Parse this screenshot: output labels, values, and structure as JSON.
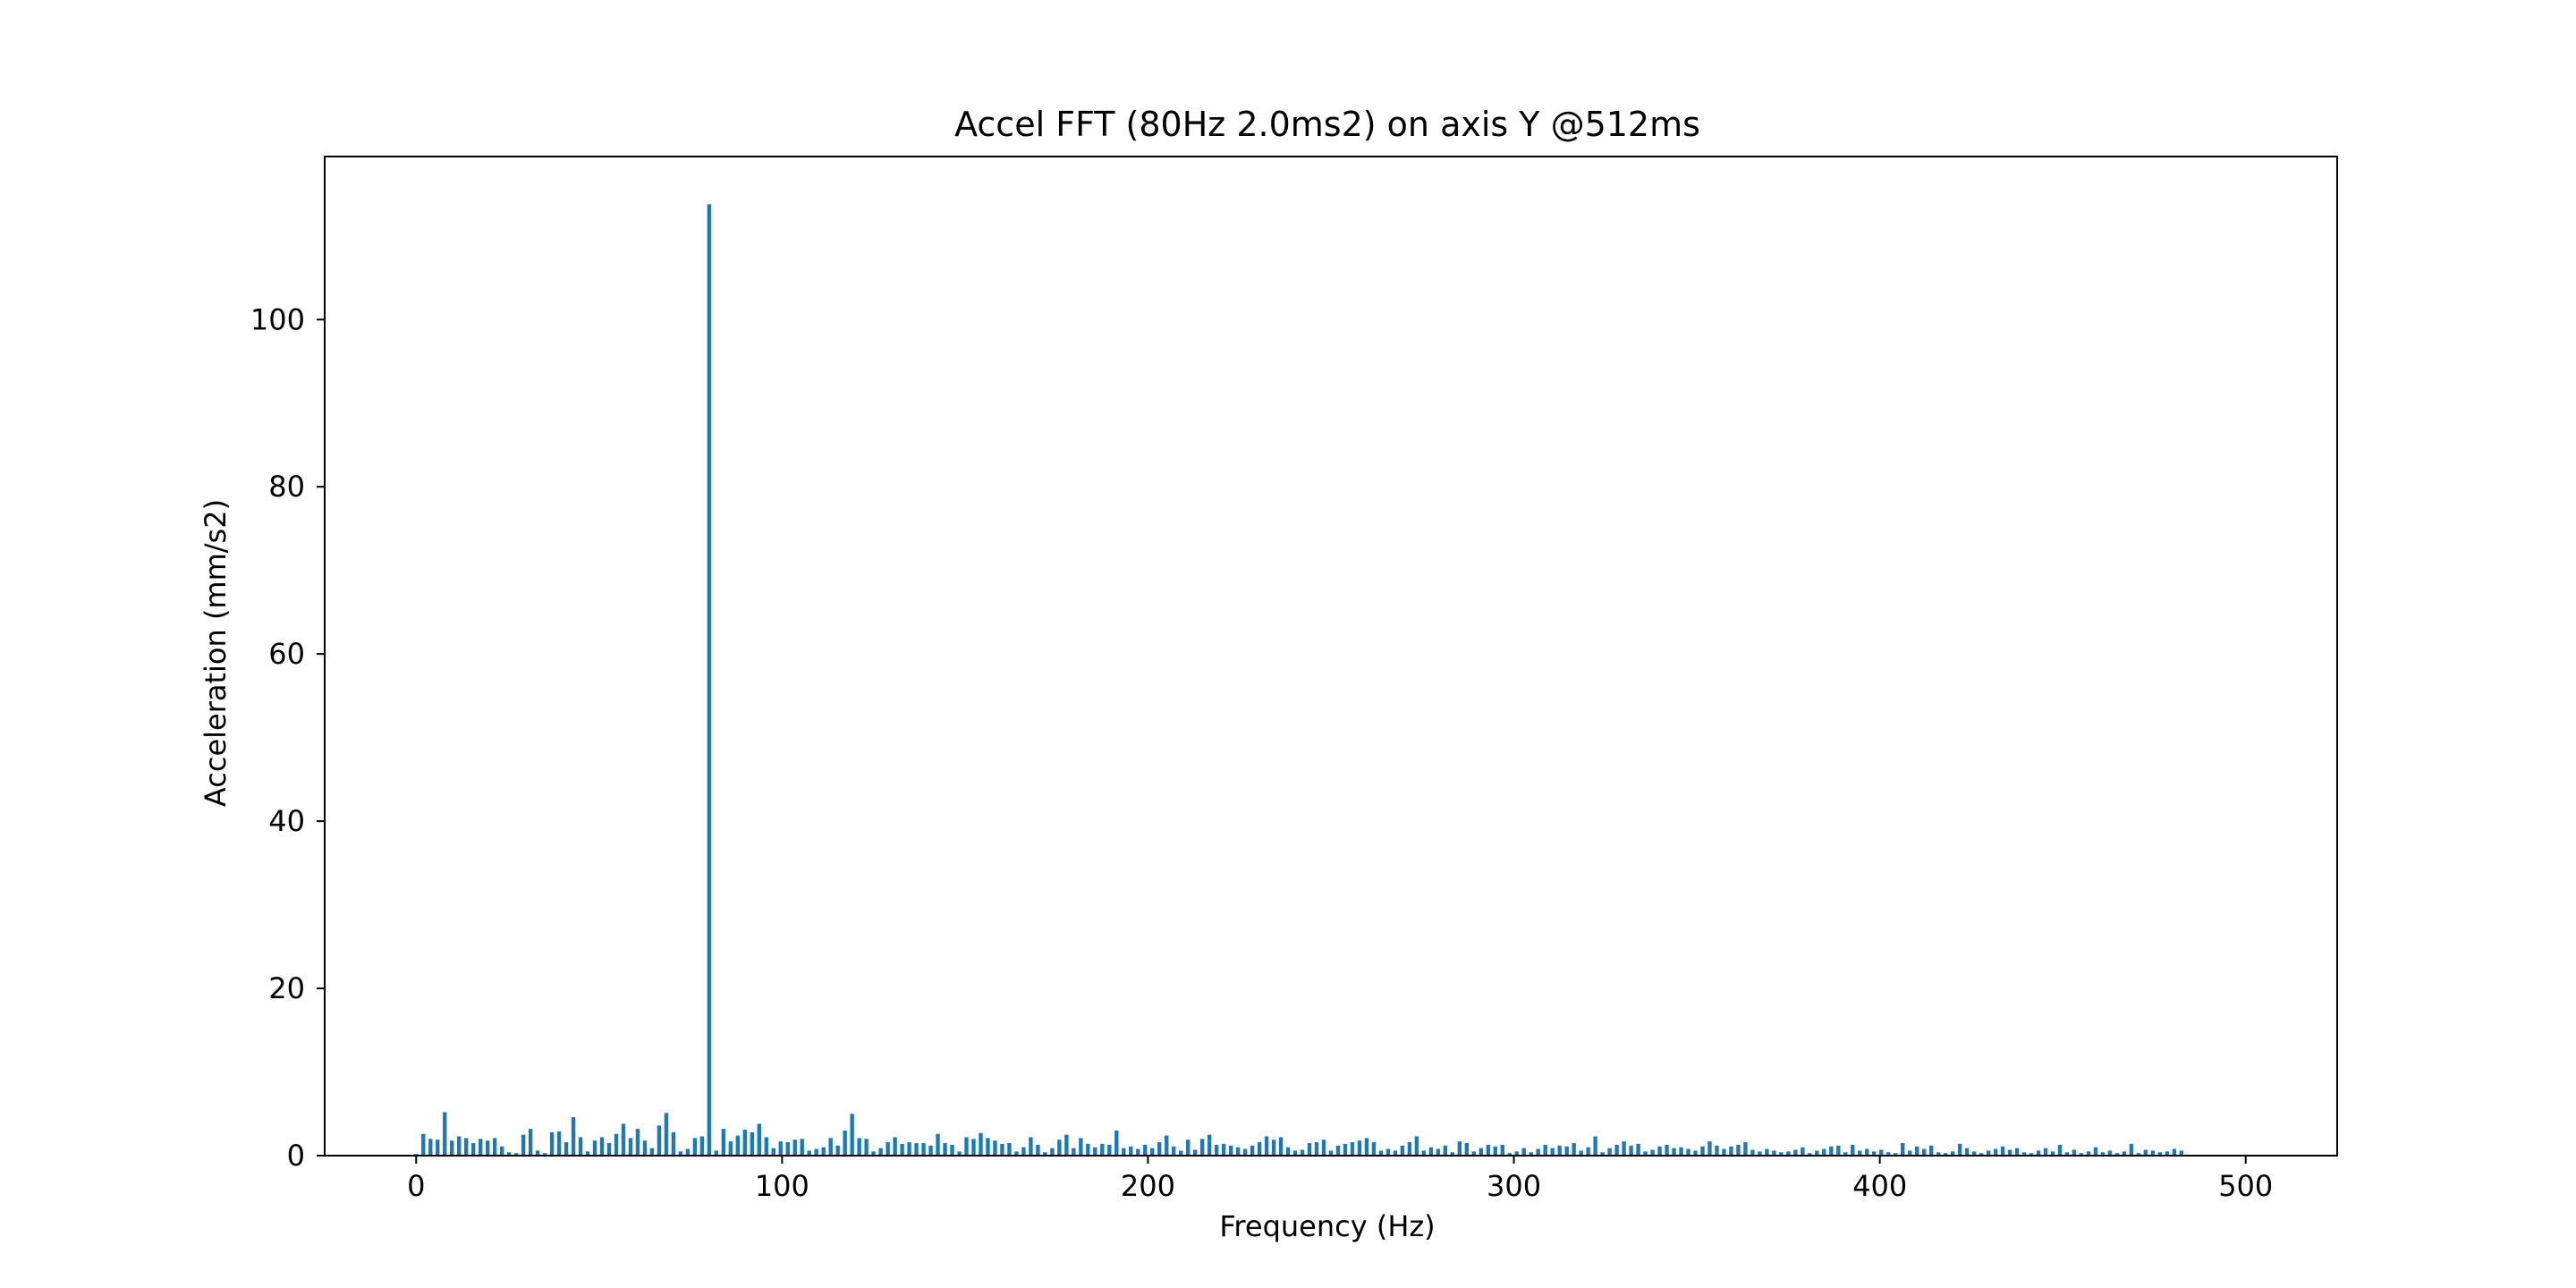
{
  "chart_data": {
    "type": "bar",
    "title": "Accel FFT (80Hz 2.0ms2) on axis Y @512ms",
    "xlabel": "Frequency (Hz)",
    "ylabel": "Acceleration (mm/s2)",
    "xlim": [
      -25,
      525
    ],
    "ylim": [
      0,
      119.5
    ],
    "xticks": [
      0,
      100,
      200,
      300,
      400,
      500
    ],
    "yticks": [
      0,
      20,
      40,
      60,
      80,
      100
    ],
    "grid": false,
    "bar_color": "#1f77b4",
    "bin_width_hz": 1.953125,
    "series": [
      {
        "values": [
          0.2,
          2.6,
          2.0,
          1.9,
          5.2,
          1.8,
          2.3,
          2.1,
          1.5,
          2.0,
          1.8,
          2.1,
          1.1,
          0.4,
          0.3,
          2.5,
          3.2,
          0.6,
          0.3,
          2.8,
          2.9,
          1.6,
          4.6,
          2.2,
          0.5,
          1.8,
          2.2,
          1.5,
          2.6,
          3.8,
          2.1,
          3.2,
          1.8,
          0.9,
          3.6,
          5.1,
          2.8,
          0.5,
          0.8,
          2.1,
          2.3,
          113.8,
          0.6,
          3.2,
          1.7,
          2.4,
          3.1,
          2.8,
          3.8,
          2.2,
          0.9,
          1.7,
          1.6,
          1.9,
          2.0,
          0.6,
          0.8,
          1.0,
          2.1,
          1.2,
          3.0,
          5.0,
          2.1,
          2.0,
          0.5,
          0.9,
          1.6,
          2.2,
          1.4,
          1.6,
          1.5,
          1.5,
          1.2,
          2.6,
          1.5,
          1.3,
          0.5,
          2.2,
          2.0,
          2.7,
          2.1,
          1.8,
          1.4,
          1.5,
          0.5,
          1.0,
          2.2,
          1.3,
          0.4,
          0.9,
          1.9,
          2.5,
          0.9,
          2.1,
          1.4,
          1.0,
          1.4,
          1.3,
          3.0,
          0.9,
          1.1,
          0.8,
          1.3,
          0.9,
          1.6,
          2.4,
          1.1,
          0.6,
          1.9,
          0.7,
          2.0,
          2.5,
          1.3,
          1.4,
          1.2,
          1.0,
          0.8,
          1.2,
          1.6,
          2.3,
          1.9,
          2.2,
          1.0,
          0.6,
          0.7,
          1.5,
          1.6,
          1.9,
          0.6,
          1.2,
          1.4,
          1.6,
          1.8,
          2.1,
          1.6,
          0.6,
          0.8,
          0.6,
          1.2,
          1.6,
          2.3,
          0.6,
          1.0,
          0.8,
          1.2,
          0.4,
          1.7,
          1.5,
          0.5,
          0.9,
          1.3,
          1.1,
          1.3,
          0.3,
          0.5,
          0.9,
          0.4,
          0.8,
          1.3,
          0.9,
          1.2,
          1.1,
          1.5,
          0.6,
          1.0,
          2.3,
          0.4,
          0.9,
          1.3,
          1.7,
          1.2,
          1.4,
          0.5,
          0.7,
          1.1,
          1.3,
          0.9,
          1.0,
          0.8,
          0.6,
          1.1,
          1.7,
          1.2,
          0.8,
          1.1,
          1.3,
          1.6,
          0.7,
          0.5,
          0.8,
          0.6,
          0.4,
          0.5,
          0.7,
          1.0,
          0.3,
          0.6,
          0.8,
          1.1,
          1.2,
          0.4,
          1.3,
          0.6,
          0.8,
          0.5,
          0.7,
          0.4,
          0.3,
          1.5,
          0.6,
          1.1,
          0.8,
          1.2,
          0.4,
          0.3,
          0.5,
          1.4,
          0.9,
          0.5,
          0.3,
          0.6,
          0.8,
          1.1,
          0.7,
          0.9,
          0.4,
          0.3,
          0.6,
          0.9,
          0.5,
          1.3,
          0.4,
          0.7,
          0.3,
          0.5,
          1.0,
          0.4,
          0.6,
          0.3,
          0.5,
          1.4,
          0.3,
          0.7,
          0.6,
          0.4,
          0.5,
          0.8,
          0.6
        ]
      }
    ]
  }
}
